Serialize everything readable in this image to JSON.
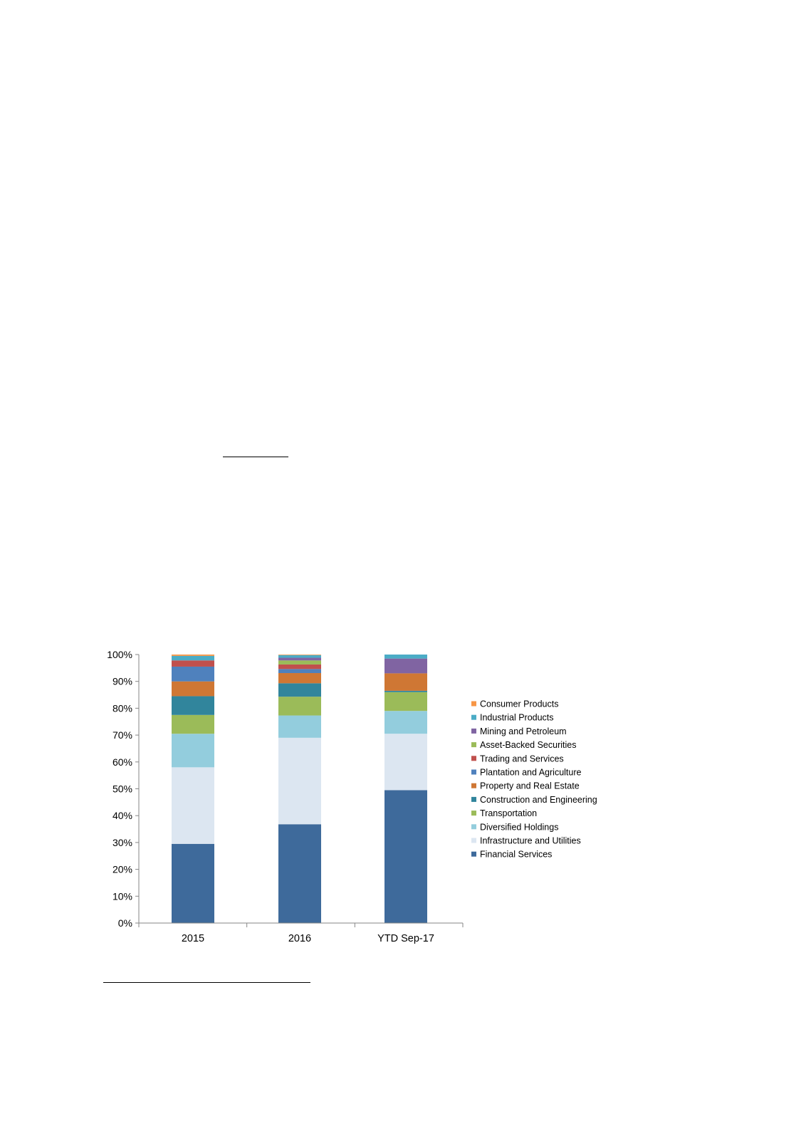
{
  "chart_data": {
    "type": "bar",
    "stacked": true,
    "percent": true,
    "title": "",
    "xlabel": "",
    "ylabel": "",
    "categories": [
      "2015",
      "2016",
      "YTD Sep-17"
    ],
    "ylim": [
      0,
      100
    ],
    "y_ticks": [
      "0%",
      "10%",
      "20%",
      "30%",
      "40%",
      "50%",
      "60%",
      "70%",
      "80%",
      "90%",
      "100%"
    ],
    "grid": false,
    "legend": "right",
    "series": [
      {
        "name": "Financial Services",
        "color": "#3E6A9B",
        "values": [
          29.5,
          36.8,
          49.5
        ]
      },
      {
        "name": "Infrastructure and Utilities",
        "color": "#DCE6F1",
        "values": [
          28.5,
          32.2,
          21.0
        ]
      },
      {
        "name": "Diversified Holdings",
        "color": "#93CDDD",
        "values": [
          12.5,
          8.3,
          8.5
        ]
      },
      {
        "name": "Transportation",
        "color": "#9BBB59",
        "values": [
          7.0,
          7.0,
          7.0
        ]
      },
      {
        "name": "Construction and Engineering",
        "color": "#31859C",
        "values": [
          7.0,
          5.0,
          0.5
        ]
      },
      {
        "name": "Property and Real Estate",
        "color": "#CF7734",
        "values": [
          5.5,
          3.8,
          6.5
        ]
      },
      {
        "name": "Plantation and Agriculture",
        "color": "#4F81BD",
        "values": [
          5.5,
          1.5,
          0.0
        ]
      },
      {
        "name": "Trading and Services",
        "color": "#C0504D",
        "values": [
          2.3,
          1.7,
          0.0
        ]
      },
      {
        "name": "Asset-Backed Securities",
        "color": "#9BBB59",
        "values": [
          0.0,
          1.5,
          0.0
        ]
      },
      {
        "name": "Mining and Petroleum",
        "color": "#8064A2",
        "values": [
          0.0,
          1.0,
          5.5
        ]
      },
      {
        "name": "Industrial Products",
        "color": "#4BACC6",
        "values": [
          1.7,
          1.0,
          1.5
        ]
      },
      {
        "name": "Consumer Products",
        "color": "#F79646",
        "values": [
          0.5,
          0.2,
          0.0
        ]
      }
    ]
  }
}
